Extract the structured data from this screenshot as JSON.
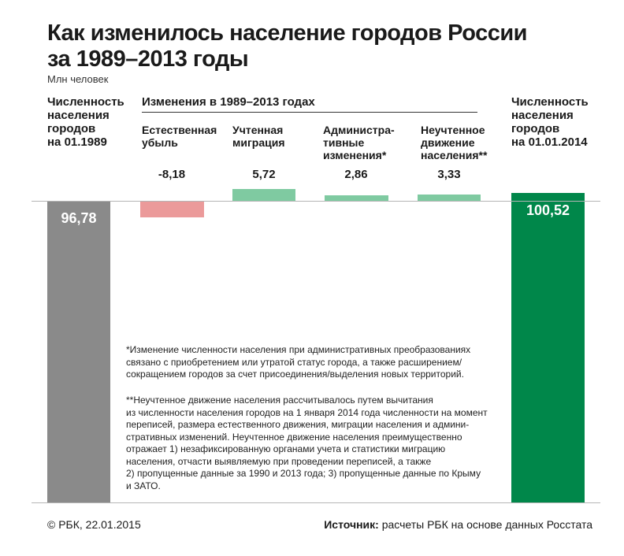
{
  "title": "Как изменилось население городов России\nза 1989–2013 годы",
  "subtitle": "Млн человек",
  "left_label": "Численность\nнаселения\nгородов\nна 01.1989",
  "right_label": "Численность\nнаселения\nгородов\nна 01.01.2014",
  "changes_header": "Изменения в 1989–2013 годах",
  "chart_data": {
    "type": "bar",
    "subtype": "waterfall",
    "title": "Как изменилось население городов России за 1989–2013 годы",
    "ylabel": "Млн человек",
    "start": {
      "label": "Численность населения городов на 01.1989",
      "value": 96.78,
      "value_label": "96,78",
      "color": "#8a8a8a"
    },
    "end": {
      "label": "Численность населения городов на 01.01.2014",
      "value": 100.52,
      "value_label": "100,52",
      "color": "#00874a"
    },
    "changes": [
      {
        "label": "Естественная\nубыль",
        "value": -8.18,
        "value_label": "-8,18",
        "color": "#eb9a9a"
      },
      {
        "label": "Учтенная\nмиграция",
        "value": 5.72,
        "value_label": "5,72",
        "color": "#7fcaa1"
      },
      {
        "label": "Администра-\nтивные\nизменения*",
        "value": 2.86,
        "value_label": "2,86",
        "color": "#7fcaa1"
      },
      {
        "label": "Неучтенное\nдвижение\nнаселения**",
        "value": 3.33,
        "value_label": "3,33",
        "color": "#7fcaa1"
      }
    ]
  },
  "note1": "*Изменение численности населения при административных преобразованиях\nсвязано с приобретением или утратой статус города, а также расширением/\nсокращением городов за счет присоединения/выделения новых территорий.",
  "note2": "**Неучтенное движение населения рассчитывалось путем вычитания\nиз численности населения городов на 1 января 2014 года численности на момент\nпереписей, размера естественного движения, миграции населения и админи-\nстративных изменений. Неучтенное движение населения преимущественно\nотражает 1) незафиксированную органами учета и статистики миграцию\nнаселения, отчасти выявляемую при проведении переписей, а также\n2) пропущенные данные за 1990 и 2013 года; 3) пропущенные данные по Крыму\nи ЗАТО.",
  "footer": {
    "copyright": "© РБК, 22.01.2015",
    "source_label": "Источник:",
    "source_text": " расчеты РБК на основе данных Росстата"
  }
}
